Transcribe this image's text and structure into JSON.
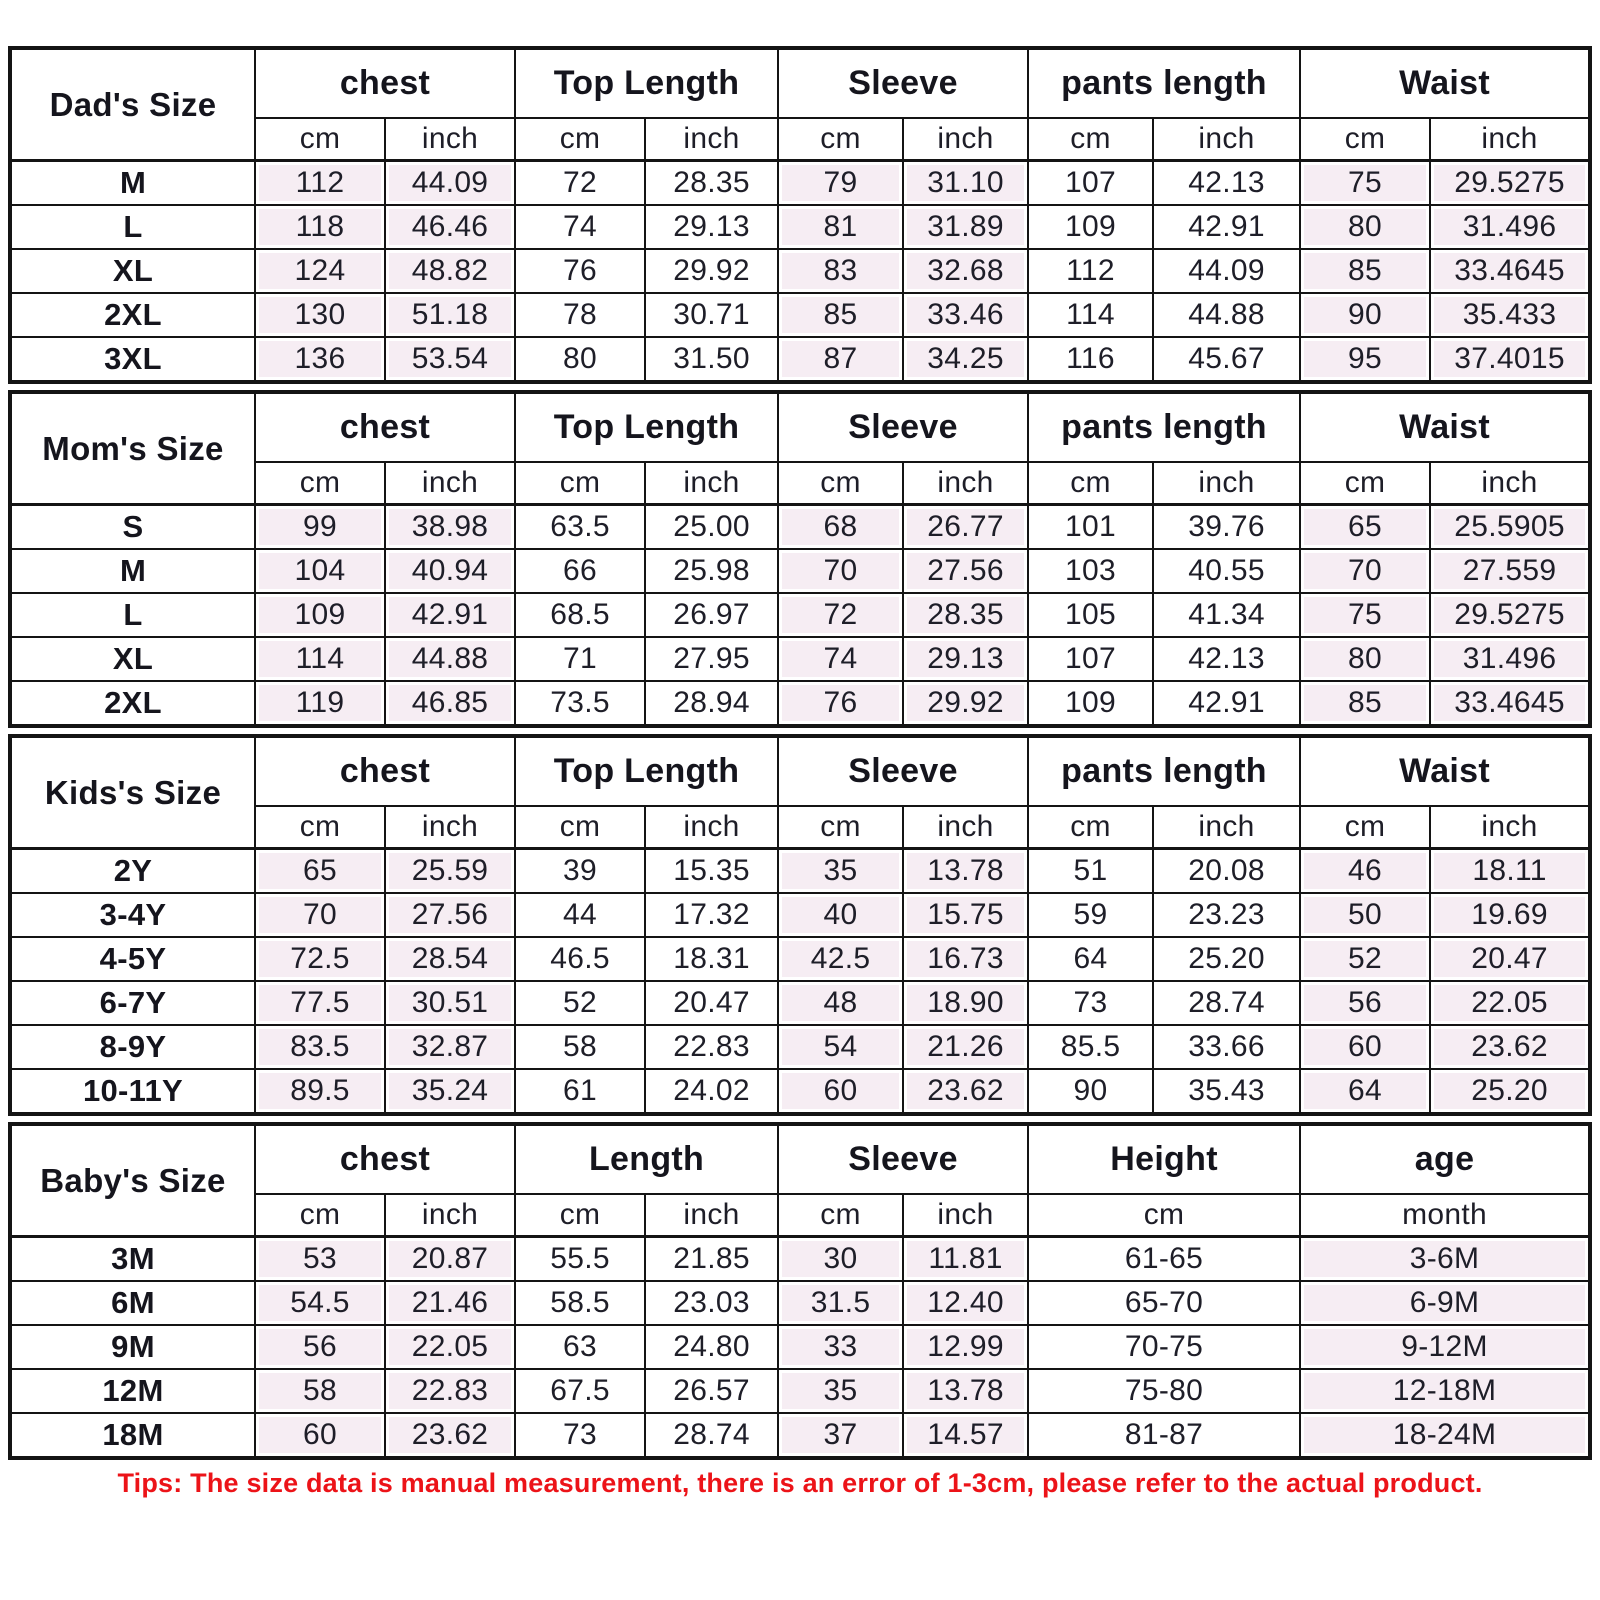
{
  "tips": {
    "text": "Tips: The size data is manual measurement, there is an error of 1-3cm, please refer to the actual product.",
    "color": "#ec1318"
  },
  "colors": {
    "shaded_cell": "#f6edf3",
    "border": "#141414",
    "text": "#1e1e28"
  },
  "tables": [
    {
      "label": "Dad's Size",
      "groups": [
        {
          "label": "chest",
          "sub": [
            "cm",
            "inch"
          ],
          "shaded": true
        },
        {
          "label": "Top Length",
          "sub": [
            "cm",
            "inch"
          ],
          "shaded": false
        },
        {
          "label": "Sleeve",
          "sub": [
            "cm",
            "inch"
          ],
          "shaded": true
        },
        {
          "label": "pants length",
          "sub": [
            "cm",
            "inch"
          ],
          "shaded": false
        },
        {
          "label": "Waist",
          "sub": [
            "cm",
            "inch"
          ],
          "shaded": true
        }
      ],
      "rows": [
        {
          "size": "M",
          "values": [
            "112",
            "44.09",
            "72",
            "28.35",
            "79",
            "31.10",
            "107",
            "42.13",
            "75",
            "29.5275"
          ]
        },
        {
          "size": "L",
          "values": [
            "118",
            "46.46",
            "74",
            "29.13",
            "81",
            "31.89",
            "109",
            "42.91",
            "80",
            "31.496"
          ]
        },
        {
          "size": "XL",
          "values": [
            "124",
            "48.82",
            "76",
            "29.92",
            "83",
            "32.68",
            "112",
            "44.09",
            "85",
            "33.4645"
          ]
        },
        {
          "size": "2XL",
          "values": [
            "130",
            "51.18",
            "78",
            "30.71",
            "85",
            "33.46",
            "114",
            "44.88",
            "90",
            "35.433"
          ]
        },
        {
          "size": "3XL",
          "values": [
            "136",
            "53.54",
            "80",
            "31.50",
            "87",
            "34.25",
            "116",
            "45.67",
            "95",
            "37.4015"
          ]
        }
      ]
    },
    {
      "label": "Mom's Size",
      "groups": [
        {
          "label": "chest",
          "sub": [
            "cm",
            "inch"
          ],
          "shaded": true
        },
        {
          "label": "Top Length",
          "sub": [
            "cm",
            "inch"
          ],
          "shaded": false
        },
        {
          "label": "Sleeve",
          "sub": [
            "cm",
            "inch"
          ],
          "shaded": true
        },
        {
          "label": "pants length",
          "sub": [
            "cm",
            "inch"
          ],
          "shaded": false
        },
        {
          "label": "Waist",
          "sub": [
            "cm",
            "inch"
          ],
          "shaded": true
        }
      ],
      "rows": [
        {
          "size": "S",
          "values": [
            "99",
            "38.98",
            "63.5",
            "25.00",
            "68",
            "26.77",
            "101",
            "39.76",
            "65",
            "25.5905"
          ]
        },
        {
          "size": "M",
          "values": [
            "104",
            "40.94",
            "66",
            "25.98",
            "70",
            "27.56",
            "103",
            "40.55",
            "70",
            "27.559"
          ]
        },
        {
          "size": "L",
          "values": [
            "109",
            "42.91",
            "68.5",
            "26.97",
            "72",
            "28.35",
            "105",
            "41.34",
            "75",
            "29.5275"
          ]
        },
        {
          "size": "XL",
          "values": [
            "114",
            "44.88",
            "71",
            "27.95",
            "74",
            "29.13",
            "107",
            "42.13",
            "80",
            "31.496"
          ]
        },
        {
          "size": "2XL",
          "values": [
            "119",
            "46.85",
            "73.5",
            "28.94",
            "76",
            "29.92",
            "109",
            "42.91",
            "85",
            "33.4645"
          ]
        }
      ]
    },
    {
      "label": "Kids's Size",
      "groups": [
        {
          "label": "chest",
          "sub": [
            "cm",
            "inch"
          ],
          "shaded": true
        },
        {
          "label": "Top Length",
          "sub": [
            "cm",
            "inch"
          ],
          "shaded": false
        },
        {
          "label": "Sleeve",
          "sub": [
            "cm",
            "inch"
          ],
          "shaded": true
        },
        {
          "label": "pants length",
          "sub": [
            "cm",
            "inch"
          ],
          "shaded": false
        },
        {
          "label": "Waist",
          "sub": [
            "cm",
            "inch"
          ],
          "shaded": true
        }
      ],
      "rows": [
        {
          "size": "2Y",
          "values": [
            "65",
            "25.59",
            "39",
            "15.35",
            "35",
            "13.78",
            "51",
            "20.08",
            "46",
            "18.11"
          ]
        },
        {
          "size": "3-4Y",
          "values": [
            "70",
            "27.56",
            "44",
            "17.32",
            "40",
            "15.75",
            "59",
            "23.23",
            "50",
            "19.69"
          ]
        },
        {
          "size": "4-5Y",
          "values": [
            "72.5",
            "28.54",
            "46.5",
            "18.31",
            "42.5",
            "16.73",
            "64",
            "25.20",
            "52",
            "20.47"
          ]
        },
        {
          "size": "6-7Y",
          "values": [
            "77.5",
            "30.51",
            "52",
            "20.47",
            "48",
            "18.90",
            "73",
            "28.74",
            "56",
            "22.05"
          ]
        },
        {
          "size": "8-9Y",
          "values": [
            "83.5",
            "32.87",
            "58",
            "22.83",
            "54",
            "21.26",
            "85.5",
            "33.66",
            "60",
            "23.62"
          ]
        },
        {
          "size": "10-11Y",
          "values": [
            "89.5",
            "35.24",
            "61",
            "24.02",
            "60",
            "23.62",
            "90",
            "35.43",
            "64",
            "25.20"
          ]
        }
      ]
    },
    {
      "label": "Baby's Size",
      "groups": [
        {
          "label": "chest",
          "sub": [
            "cm",
            "inch"
          ],
          "shaded": true
        },
        {
          "label": "Length",
          "sub": [
            "cm",
            "inch"
          ],
          "shaded": false
        },
        {
          "label": "Sleeve",
          "sub": [
            "cm",
            "inch"
          ],
          "shaded": true
        },
        {
          "label": "Height",
          "sub": [
            "cm"
          ],
          "shaded": false
        },
        {
          "label": "age",
          "sub": [
            "month"
          ],
          "shaded": true
        }
      ],
      "rows": [
        {
          "size": "3M",
          "values": [
            "53",
            "20.87",
            "55.5",
            "21.85",
            "30",
            "11.81",
            "61-65",
            "3-6M"
          ]
        },
        {
          "size": "6M",
          "values": [
            "54.5",
            "21.46",
            "58.5",
            "23.03",
            "31.5",
            "12.40",
            "65-70",
            "6-9M"
          ]
        },
        {
          "size": "9M",
          "values": [
            "56",
            "22.05",
            "63",
            "24.80",
            "33",
            "12.99",
            "70-75",
            "9-12M"
          ]
        },
        {
          "size": "12M",
          "values": [
            "58",
            "22.83",
            "67.5",
            "26.57",
            "35",
            "13.78",
            "75-80",
            "12-18M"
          ]
        },
        {
          "size": "18M",
          "values": [
            "60",
            "23.62",
            "73",
            "28.74",
            "37",
            "14.57",
            "81-87",
            "18-24M"
          ]
        }
      ]
    }
  ]
}
